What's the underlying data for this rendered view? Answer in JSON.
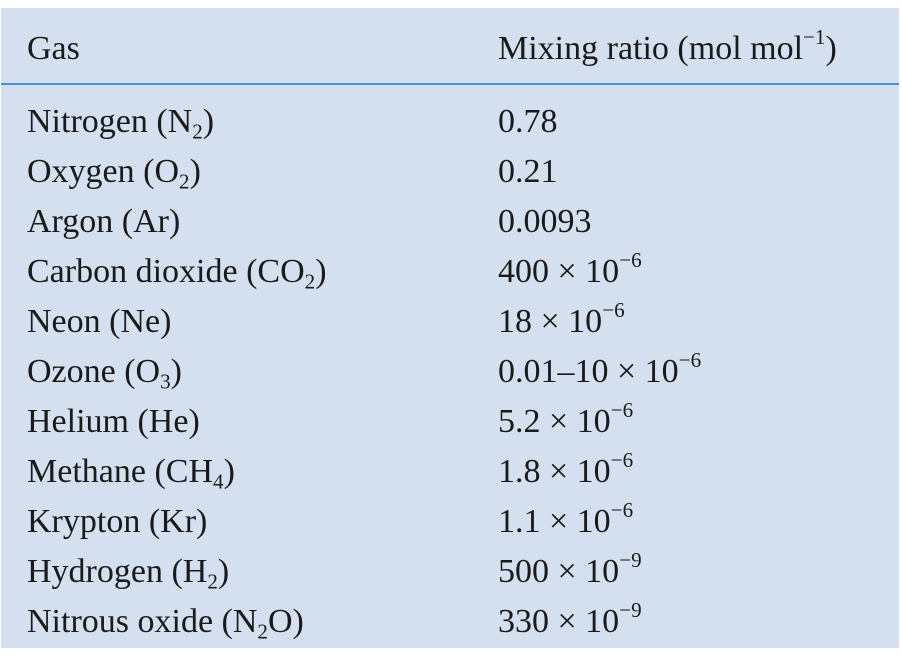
{
  "table": {
    "header": {
      "gas": "Gas",
      "ratio_text": "Mixing ratio (mol mol",
      "ratio_sup": "−1",
      "ratio_close": ")"
    },
    "rows": [
      {
        "name": "Nitrogen (N",
        "sub": "2",
        "after": ")",
        "value": "0.78",
        "exp": ""
      },
      {
        "name": "Oxygen (O",
        "sub": "2",
        "after": ")",
        "value": "0.21",
        "exp": ""
      },
      {
        "name": "Argon (Ar)",
        "sub": "",
        "after": "",
        "value": "0.0093",
        "exp": ""
      },
      {
        "name": "Carbon dioxide (CO",
        "sub": "2",
        "after": ")",
        "value": "400 × 10",
        "exp": "−6"
      },
      {
        "name": "Neon (Ne)",
        "sub": "",
        "after": "",
        "value": "18 × 10",
        "exp": "−6"
      },
      {
        "name": "Ozone (O",
        "sub": "3",
        "after": ")",
        "value": "0.01–10 × 10",
        "exp": "−6"
      },
      {
        "name": "Helium (He)",
        "sub": "",
        "after": "",
        "value": "5.2 × 10",
        "exp": "−6"
      },
      {
        "name": "Methane (CH",
        "sub": "4",
        "after": ")",
        "value": "1.8 × 10",
        "exp": "−6"
      },
      {
        "name": "Krypton (Kr)",
        "sub": "",
        "after": "",
        "value": "1.1 × 10",
        "exp": "−6"
      },
      {
        "name": "Hydrogen (H",
        "sub": "2",
        "after": ")",
        "value": "500 × 10",
        "exp": "−9"
      },
      {
        "name": "Nitrous oxide (N",
        "sub": "2",
        "after": "O)",
        "value": "330 × 10",
        "exp": "−9"
      }
    ]
  },
  "colors": {
    "panel_background": "#d4e0f0",
    "header_rule": "#4b8fd2",
    "text": "#1a1a1a"
  }
}
